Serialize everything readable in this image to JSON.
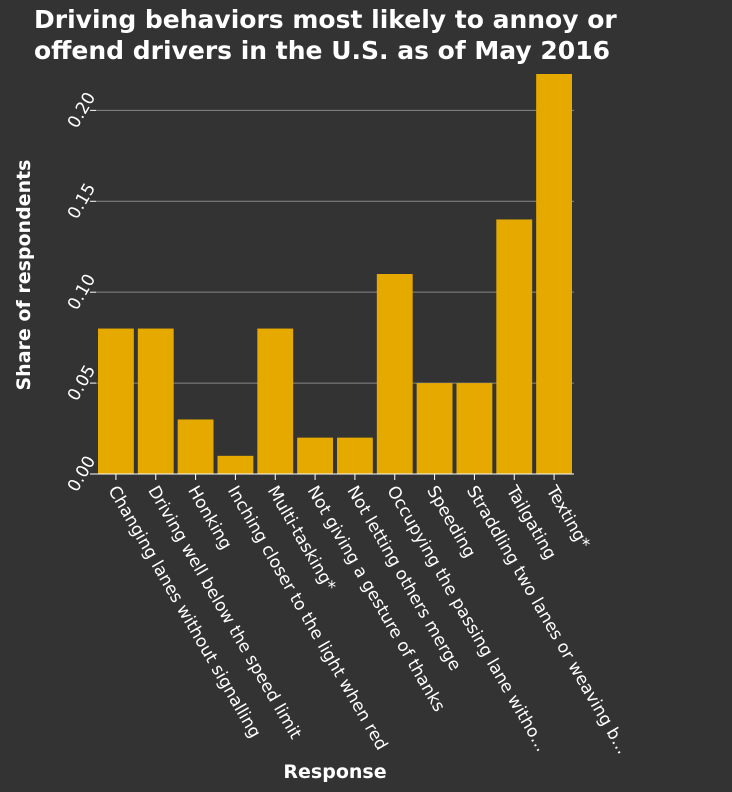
{
  "chart_data": {
    "type": "bar",
    "title_lines": [
      "Driving behaviors most likely to annoy or",
      "offend drivers in the U.S. as of May 2016"
    ],
    "xlabel": "Response",
    "ylabel": "Share of respondents",
    "categories": [
      "Changing lanes without signalling",
      "Driving well below the speed limit",
      "Honking",
      "Inching closer to the light when red",
      "Multi-tasking*",
      "Not giving a gesture of thanks",
      "Not letting others merge",
      "Occupying the passing lane witho...",
      "Speeding",
      "Straddling two lanes or weaving b...",
      "Tailgating",
      "Texting*"
    ],
    "values": [
      0.08,
      0.08,
      0.03,
      0.01,
      0.08,
      0.02,
      0.02,
      0.11,
      0.05,
      0.05,
      0.14,
      0.22
    ],
    "yticks": [
      "0.00",
      "0.05",
      "0.10",
      "0.15",
      "0.20"
    ],
    "ytick_values": [
      0,
      0.05,
      0.1,
      0.15,
      0.2
    ],
    "ylim": [
      0,
      0.22
    ],
    "grid": true,
    "legend": "none",
    "colors": {
      "bar": "#e5a900",
      "background": "#333333",
      "grid": "#888888",
      "text": "#ffffff"
    }
  }
}
